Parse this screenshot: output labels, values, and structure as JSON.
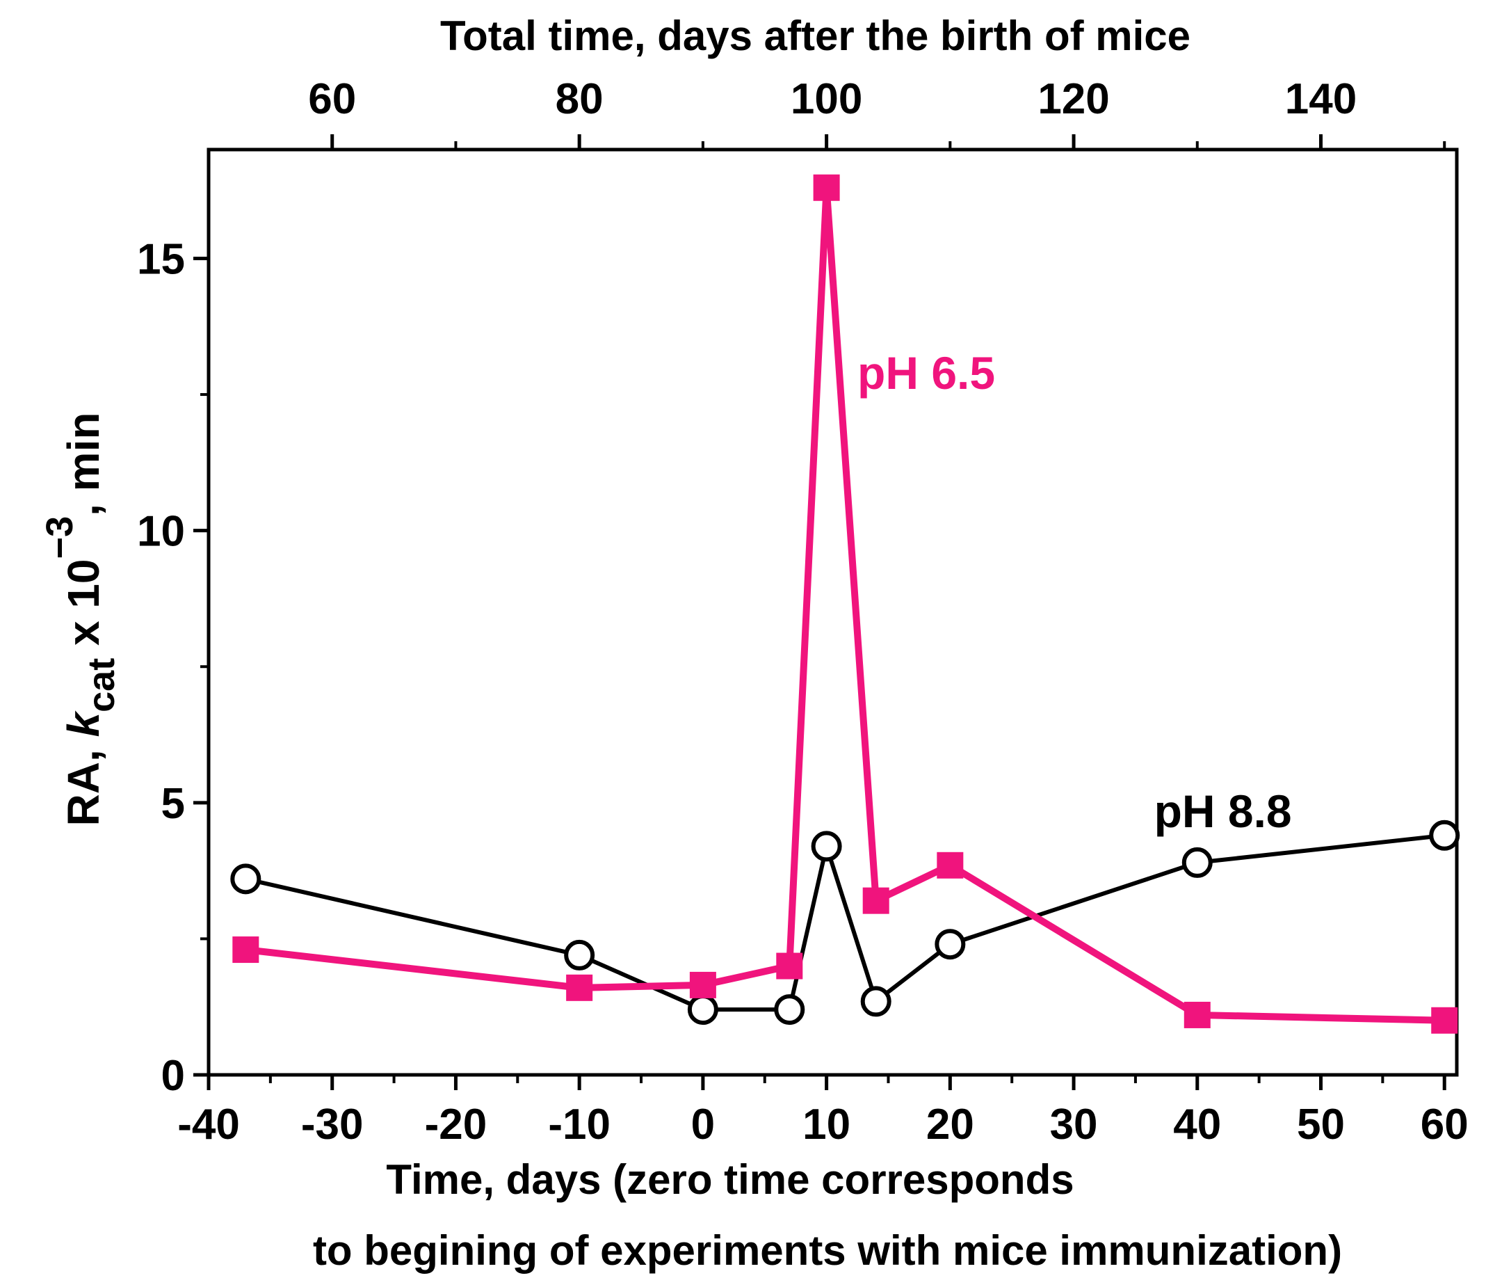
{
  "chart_data": {
    "type": "line",
    "title": "",
    "xlabel_line1": "Time, days (zero time corresponds",
    "xlabel_line2": "to begining of experiments with mice immunization)",
    "ylabel": {
      "prefix": "RA, ",
      "k": "k",
      "k_sub": "cat",
      "mid": " x 10",
      "exp": "−3",
      "suffix": ", min"
    },
    "top_xlabel": "Total time, days after the birth of mice",
    "xlim": [
      -40,
      61
    ],
    "ylim": [
      0,
      17
    ],
    "x_ticks": [
      -40,
      -30,
      -20,
      -10,
      0,
      10,
      20,
      30,
      40,
      50,
      60
    ],
    "x_tick_labels": [
      "-40",
      "-30",
      "-20",
      "-10",
      "0",
      "10",
      "20",
      "30",
      "40",
      "50",
      "60"
    ],
    "y_ticks": [
      0,
      5,
      10,
      15
    ],
    "y_tick_labels": [
      "0",
      "5",
      "10",
      "15"
    ],
    "top_x_offset": 90,
    "top_ticks": [
      60,
      80,
      100,
      120,
      140
    ],
    "top_tick_labels": [
      "60",
      "80",
      "100",
      "120",
      "140"
    ],
    "colors": {
      "ph65": "#f0147d",
      "ph88": "#000000",
      "axis": "#000000"
    },
    "series": [
      {
        "name": "pH 6.5",
        "label": "pH 6.5",
        "marker": "filled-square",
        "color": "#f0147d",
        "x": [
          -37,
          -10,
          0,
          7,
          10,
          14,
          20,
          40,
          60
        ],
        "y": [
          2.3,
          1.6,
          1.65,
          2.0,
          16.3,
          3.2,
          3.85,
          1.1,
          1.0
        ]
      },
      {
        "name": "pH 8.8",
        "label": "pH 8.8",
        "marker": "open-circle",
        "color": "#000000",
        "x": [
          -37,
          -10,
          0,
          7,
          10,
          14,
          20,
          40,
          60
        ],
        "y": [
          3.6,
          2.2,
          1.2,
          1.2,
          4.2,
          1.35,
          2.4,
          3.9,
          4.4
        ]
      }
    ]
  }
}
